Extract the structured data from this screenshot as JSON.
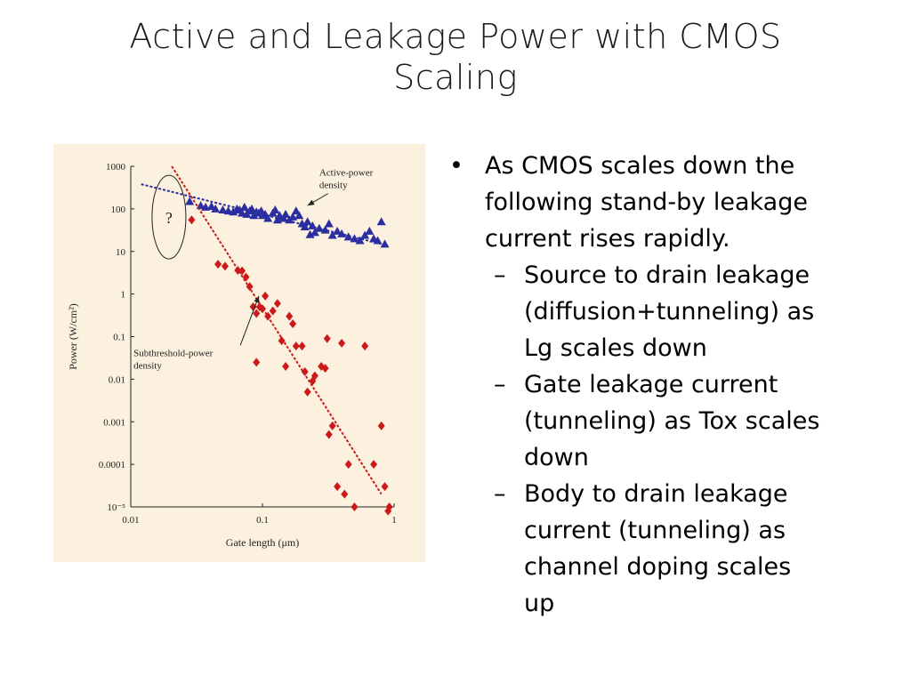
{
  "slide": {
    "title_line1": "Active and Leakage Power with CMOS",
    "title_line2": "Scaling"
  },
  "bullets": {
    "main_mark": "•",
    "main_lines": [
      "As CMOS scales down the",
      "following stand-by leakage",
      "current rises rapidly."
    ],
    "sub_mark": "–",
    "sub_items": [
      {
        "lines": [
          "Source to drain leakage",
          "(diffusion+tunneling) as",
          "Lg scales down"
        ]
      },
      {
        "lines": [
          "Gate leakage current",
          "(tunneling) as Tox scales",
          "down"
        ]
      },
      {
        "lines": [
          "Body to drain leakage",
          "current (tunneling) as",
          "channel doping scales",
          "up"
        ]
      }
    ]
  },
  "chart_data": {
    "type": "scatter",
    "xlabel": "Gate length  (μm)",
    "ylabel": "Power  (W/cm²)",
    "x_scale": "log",
    "y_scale": "log",
    "xlim": [
      0.01,
      1
    ],
    "ylim": [
      1e-05,
      1000
    ],
    "x_ticks": [
      {
        "value": 0.01,
        "label": "0.01"
      },
      {
        "value": 0.1,
        "label": "0.1"
      },
      {
        "value": 1,
        "label": "1"
      }
    ],
    "y_ticks": [
      {
        "value": 1000,
        "label": "1000"
      },
      {
        "value": 100,
        "label": "100"
      },
      {
        "value": 10,
        "label": "10"
      },
      {
        "value": 1,
        "label": "1"
      },
      {
        "value": 0.1,
        "label": "0.1"
      },
      {
        "value": 0.01,
        "label": "0.01"
      },
      {
        "value": 0.001,
        "label": "0.001"
      },
      {
        "value": 0.0001,
        "label": "0.0001"
      },
      {
        "value": 1e-05,
        "label": "10⁻⁵"
      }
    ],
    "grid": false,
    "annotations": [
      {
        "lines": [
          "Active-power",
          "density"
        ],
        "series": "active",
        "text_at": [
          0.27,
          600
        ],
        "arrow_tip": [
          0.22,
          120
        ]
      },
      {
        "lines": [
          "Subthreshold-power",
          "density"
        ],
        "series": "subthreshold",
        "text_at": [
          0.0105,
          0.035
        ],
        "arrow_tip": [
          0.094,
          0.9
        ]
      },
      {
        "text": "?",
        "series": "unknown-region",
        "text_at": [
          0.0195,
          90
        ]
      }
    ],
    "series": [
      {
        "id": "active",
        "color": "#2a2ea0",
        "marker": "triangle",
        "trend": [
          [
            0.012,
            380
          ],
          [
            0.8,
            15
          ]
        ],
        "points": [
          [
            0.028,
            150
          ],
          [
            0.034,
            120
          ],
          [
            0.037,
            110
          ],
          [
            0.041,
            115
          ],
          [
            0.044,
            100
          ],
          [
            0.05,
            95
          ],
          [
            0.055,
            90
          ],
          [
            0.06,
            85
          ],
          [
            0.064,
            100
          ],
          [
            0.067,
            95
          ],
          [
            0.07,
            80
          ],
          [
            0.073,
            110
          ],
          [
            0.076,
            75
          ],
          [
            0.08,
            90
          ],
          [
            0.083,
            100
          ],
          [
            0.086,
            70
          ],
          [
            0.09,
            85
          ],
          [
            0.094,
            80
          ],
          [
            0.098,
            90
          ],
          [
            0.1,
            70
          ],
          [
            0.105,
            75
          ],
          [
            0.11,
            60
          ],
          [
            0.12,
            80
          ],
          [
            0.125,
            95
          ],
          [
            0.13,
            55
          ],
          [
            0.135,
            70
          ],
          [
            0.145,
            60
          ],
          [
            0.15,
            75
          ],
          [
            0.16,
            55
          ],
          [
            0.17,
            65
          ],
          [
            0.18,
            90
          ],
          [
            0.19,
            70
          ],
          [
            0.2,
            45
          ],
          [
            0.21,
            38
          ],
          [
            0.22,
            50
          ],
          [
            0.23,
            25
          ],
          [
            0.24,
            40
          ],
          [
            0.25,
            28
          ],
          [
            0.27,
            35
          ],
          [
            0.3,
            32
          ],
          [
            0.32,
            45
          ],
          [
            0.34,
            24
          ],
          [
            0.37,
            30
          ],
          [
            0.4,
            26
          ],
          [
            0.45,
            22
          ],
          [
            0.5,
            20
          ],
          [
            0.55,
            18
          ],
          [
            0.6,
            24
          ],
          [
            0.65,
            30
          ],
          [
            0.7,
            20
          ],
          [
            0.75,
            18
          ],
          [
            0.8,
            50
          ],
          [
            0.85,
            15
          ]
        ]
      },
      {
        "id": "subthreshold",
        "color": "#cc1a1a",
        "marker": "diamond",
        "trend": [
          [
            0.0205,
            1000
          ],
          [
            0.8,
            2e-05
          ]
        ],
        "points": [
          [
            0.029,
            55
          ],
          [
            0.046,
            5
          ],
          [
            0.052,
            4.5
          ],
          [
            0.065,
            3.6
          ],
          [
            0.07,
            3.5
          ],
          [
            0.075,
            2.5
          ],
          [
            0.08,
            1.5
          ],
          [
            0.085,
            0.5
          ],
          [
            0.09,
            0.35
          ],
          [
            0.095,
            0.5
          ],
          [
            0.1,
            0.45
          ],
          [
            0.105,
            0.9
          ],
          [
            0.11,
            0.3
          ],
          [
            0.12,
            0.4
          ],
          [
            0.13,
            0.6
          ],
          [
            0.14,
            0.08
          ],
          [
            0.09,
            0.025
          ],
          [
            0.15,
            0.02
          ],
          [
            0.16,
            0.3
          ],
          [
            0.17,
            0.2
          ],
          [
            0.18,
            0.06
          ],
          [
            0.2,
            0.06
          ],
          [
            0.21,
            0.015
          ],
          [
            0.22,
            0.005
          ],
          [
            0.24,
            0.009
          ],
          [
            0.25,
            0.012
          ],
          [
            0.28,
            0.02
          ],
          [
            0.3,
            0.018
          ],
          [
            0.32,
            0.0005
          ],
          [
            0.34,
            0.0008
          ],
          [
            0.37,
            3e-05
          ],
          [
            0.4,
            0.07
          ],
          [
            0.42,
            2e-05
          ],
          [
            0.45,
            0.0001
          ],
          [
            0.5,
            1e-05
          ],
          [
            0.6,
            0.06
          ],
          [
            0.7,
            0.0001
          ],
          [
            0.8,
            0.0008
          ],
          [
            0.85,
            3e-05
          ],
          [
            0.9,
            8e-06
          ],
          [
            0.92,
            1e-05
          ],
          [
            0.31,
            0.09
          ]
        ]
      }
    ]
  }
}
